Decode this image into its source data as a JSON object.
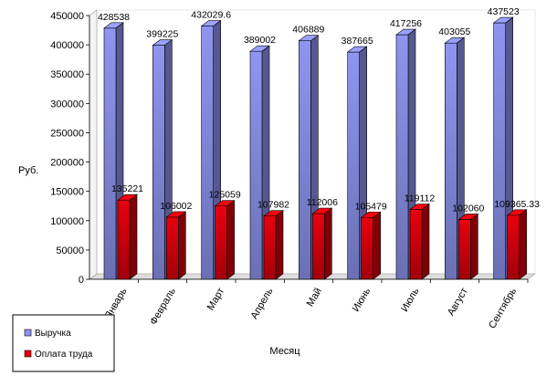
{
  "chart_data": {
    "type": "bar",
    "style": "3d-clustered",
    "categories": [
      "Январь",
      "Февраль",
      "Март",
      "Апрель",
      "Май",
      "Июнь",
      "Июль",
      "Август",
      "Сентябрь"
    ],
    "series": [
      {
        "name": "Выручка",
        "color": "#8f95f0",
        "values": [
          428538,
          399225,
          432029.6,
          389002,
          406889,
          387665,
          417256,
          403055,
          437523
        ],
        "labels": [
          "428538",
          "399225",
          "432029.6",
          "389002",
          "406889",
          "387665",
          "417256",
          "403055",
          "437523"
        ]
      },
      {
        "name": "Оплата труда",
        "color": "#e8000e",
        "values": [
          135221,
          106002,
          125059,
          107982,
          112006,
          105479,
          119112,
          102060,
          109365.33
        ],
        "labels": [
          "135221",
          "106002",
          "125059",
          "107982",
          "112006",
          "105479",
          "119112",
          "102060",
          "109365.33"
        ]
      }
    ],
    "xlabel": "Месяц",
    "ylabel": "Руб.",
    "ylim": [
      0,
      450000
    ],
    "yticks": [
      0,
      50000,
      100000,
      150000,
      200000,
      250000,
      300000,
      350000,
      400000,
      450000
    ],
    "grid": false,
    "legend_position": "bottom-left"
  }
}
